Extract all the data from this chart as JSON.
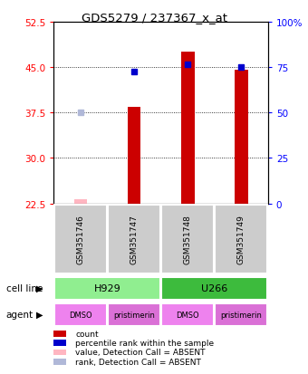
{
  "title": "GDS5279 / 237367_x_at",
  "samples": [
    "GSM351746",
    "GSM351747",
    "GSM351748",
    "GSM351749"
  ],
  "bar_values": [
    null,
    38.5,
    47.5,
    44.5
  ],
  "bar_absent": [
    23.2,
    null,
    null,
    null
  ],
  "rank_values": [
    null,
    44.3,
    45.5,
    45.0
  ],
  "rank_absent": [
    37.5,
    null,
    null,
    null
  ],
  "ylim": [
    22.5,
    52.5
  ],
  "yticks": [
    22.5,
    30.0,
    37.5,
    45.0,
    52.5
  ],
  "y2ticks_pct": [
    0,
    25,
    50,
    75,
    100
  ],
  "cell_lines": [
    [
      "H929",
      2
    ],
    [
      "U266",
      2
    ]
  ],
  "cell_line_colors": [
    "#90ee90",
    "#3dbb3d"
  ],
  "agents": [
    "DMSO",
    "pristimerin",
    "DMSO",
    "pristimerin"
  ],
  "bar_color": "#cc0000",
  "rank_color": "#0000cc",
  "absent_bar_color": "#ffb6c1",
  "absent_rank_color": "#b0b8d8",
  "bar_width": 0.25,
  "legend_items": [
    {
      "label": "count",
      "color": "#cc0000"
    },
    {
      "label": "percentile rank within the sample",
      "color": "#0000cc"
    },
    {
      "label": "value, Detection Call = ABSENT",
      "color": "#ffb6c1"
    },
    {
      "label": "rank, Detection Call = ABSENT",
      "color": "#b0b8d8"
    }
  ],
  "agent_color_dmso": "#ee82ee",
  "agent_color_prist": "#da70d6",
  "sample_box_color": "#cccccc",
  "cell_line_h929_color": "#90ee90",
  "cell_line_u266_color": "#3dbb3d"
}
